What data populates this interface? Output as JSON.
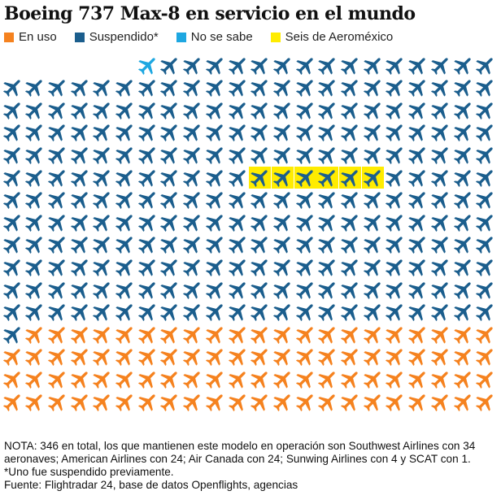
{
  "title": "Boeing 737 Max-8 en servicio en el mundo",
  "legend": [
    {
      "label": "En uso",
      "color": "#f5821f"
    },
    {
      "label": "Suspendido*",
      "color": "#1b5e8d"
    },
    {
      "label": "No se sabe",
      "color": "#1ea7e1"
    },
    {
      "label": "Seis de Aeroméxico",
      "color": "#ffec00"
    }
  ],
  "chart_data": {
    "type": "pictogram",
    "icon": "airplane-icon",
    "total": 346,
    "columns": 22,
    "categories": [
      "No se sabe",
      "Suspendido*",
      "Seis de Aeroméxico",
      "En uso"
    ],
    "values": [
      1,
      252,
      6,
      87
    ]
  },
  "note": "NOTA: 346 en total, los que mantienen este modelo en operación son Southwest Airlines con 34 aeronaves; American Airlines con 24; Air Canada con 24; Sunwing Airlines con 4 y SCAT con 1. *Uno fue suspendido previamente.",
  "source": "Fuente: Flightradar 24, base de datos Openflights, agencias"
}
